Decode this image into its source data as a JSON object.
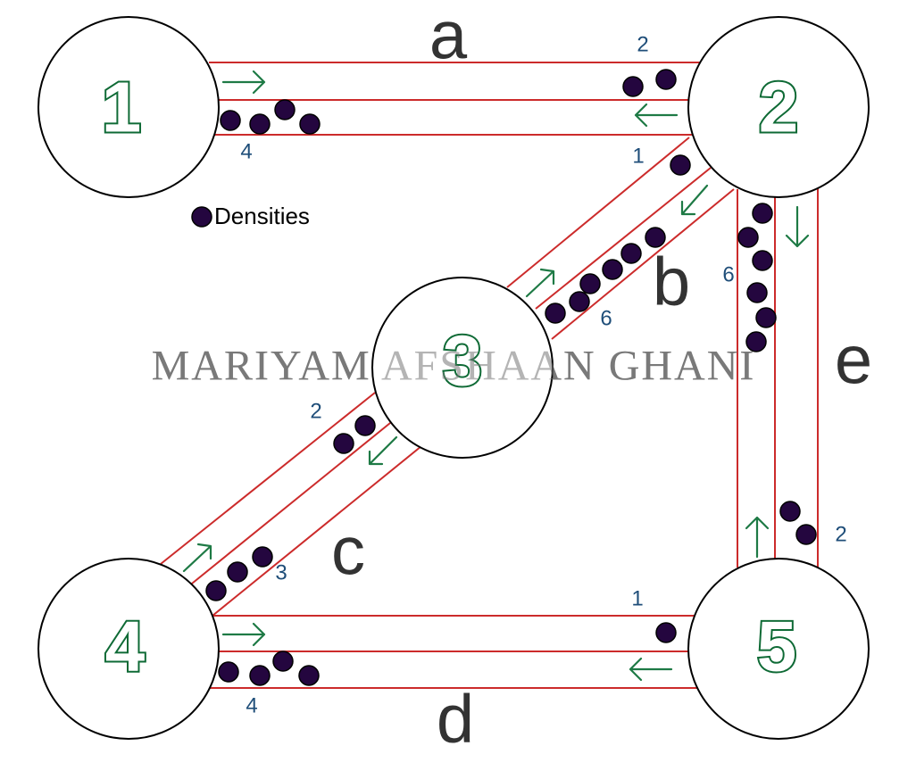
{
  "watermark": "MARIYAM AFSHAAN GHANI",
  "legend": {
    "label": "Densities"
  },
  "colors": {
    "road": "#cc2b2b",
    "node_number": "#0e6a35",
    "arrow": "#1e7a45",
    "count_text": "#1f4e79",
    "density_dot": "#24063f",
    "edge_label": "#333333"
  },
  "nodes": [
    {
      "id": "1",
      "label": "1"
    },
    {
      "id": "2",
      "label": "2"
    },
    {
      "id": "3",
      "label": "3"
    },
    {
      "id": "4",
      "label": "4"
    },
    {
      "id": "5",
      "label": "5"
    }
  ],
  "edges": [
    {
      "id": "a",
      "label": "a",
      "between": [
        "1",
        "2"
      ],
      "lanes": [
        {
          "direction": "1→2",
          "density": 2
        },
        {
          "direction": "2→1",
          "density": 4
        }
      ]
    },
    {
      "id": "b",
      "label": "b",
      "between": [
        "2",
        "3"
      ],
      "lanes": [
        {
          "direction": "2→3",
          "density": 1
        },
        {
          "direction": "3→2",
          "density": 6
        }
      ]
    },
    {
      "id": "c",
      "label": "c",
      "between": [
        "3",
        "4"
      ],
      "lanes": [
        {
          "direction": "3→4",
          "density": 2
        },
        {
          "direction": "4→3",
          "density": 3
        }
      ]
    },
    {
      "id": "d",
      "label": "d",
      "between": [
        "4",
        "5"
      ],
      "lanes": [
        {
          "direction": "4→5",
          "density": 1
        },
        {
          "direction": "5→4",
          "density": 4
        }
      ]
    },
    {
      "id": "e",
      "label": "e",
      "between": [
        "2",
        "5"
      ],
      "lanes": [
        {
          "direction": "5→2",
          "density": 6
        },
        {
          "direction": "2→5",
          "density": 2
        }
      ]
    }
  ],
  "counts": {
    "a_top": "2",
    "a_bottom": "4",
    "b_upper": "1",
    "b_lower": "6",
    "c_upper": "2",
    "c_lower": "3",
    "d_top": "1",
    "d_bottom": "4",
    "e_left": "6",
    "e_right": "2"
  }
}
